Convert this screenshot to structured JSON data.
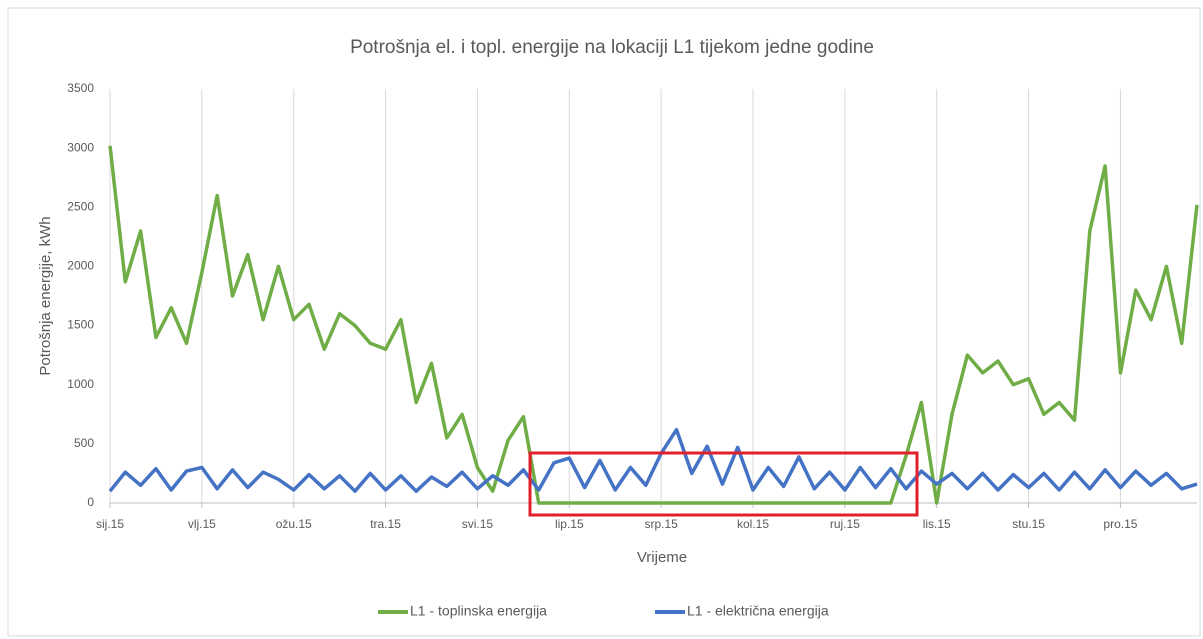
{
  "chart_data": {
    "type": "line",
    "title": "Potrošnja el. i topl. energije na lokaciji L1 tijekom jedne godine",
    "x_label": "Vrijeme",
    "y_label": "Potrošnja energije, kWh",
    "categories": [
      "sij.15",
      null,
      null,
      null,
      null,
      null,
      "vlj.15",
      null,
      null,
      null,
      null,
      null,
      "ožu.15",
      null,
      null,
      null,
      null,
      null,
      "tra.15",
      null,
      null,
      null,
      null,
      null,
      "svi.15",
      null,
      null,
      null,
      null,
      null,
      "lip.15",
      null,
      null,
      null,
      null,
      null,
      "srp.15",
      null,
      null,
      null,
      null,
      null,
      "kol.15",
      null,
      null,
      null,
      null,
      null,
      "ruj.15",
      null,
      null,
      null,
      null,
      null,
      "lis.15",
      null,
      null,
      null,
      null,
      null,
      "stu.15",
      null,
      null,
      null,
      null,
      null,
      "pro.15",
      null,
      null,
      null,
      null,
      null
    ],
    "ylim": [
      0,
      3500
    ],
    "yticks": [
      0,
      500,
      1000,
      1500,
      2000,
      2500,
      3000,
      3500
    ],
    "grid": "vertical",
    "legend": "bottom",
    "series": [
      {
        "name": "L1 - toplinska energija",
        "color": "#70ad47",
        "values": [
          3020,
          1870,
          2300,
          1400,
          1650,
          1350,
          1950,
          2600,
          1750,
          2100,
          1550,
          2000,
          1550,
          1680,
          1300,
          1600,
          1500,
          1350,
          1300,
          1550,
          850,
          1180,
          550,
          750,
          300,
          100,
          530,
          730,
          0,
          0,
          0,
          0,
          0,
          0,
          0,
          0,
          0,
          0,
          0,
          0,
          0,
          0,
          0,
          0,
          0,
          0,
          0,
          0,
          0,
          0,
          0,
          0,
          400,
          850,
          0,
          750,
          1250,
          1100,
          1200,
          1000,
          1050,
          750,
          850,
          700,
          2300,
          2850,
          1100,
          1800,
          1550,
          2000,
          1350,
          2520
        ]
      },
      {
        "name": "L1 - električna energija",
        "color": "#4472c4",
        "values": [
          100,
          260,
          150,
          290,
          110,
          270,
          300,
          120,
          280,
          130,
          260,
          200,
          110,
          240,
          120,
          230,
          100,
          250,
          110,
          230,
          100,
          220,
          140,
          260,
          120,
          230,
          150,
          280,
          110,
          340,
          380,
          130,
          360,
          110,
          300,
          150,
          420,
          620,
          250,
          480,
          160,
          470,
          110,
          300,
          140,
          390,
          120,
          260,
          110,
          300,
          130,
          290,
          120,
          270,
          160,
          250,
          120,
          250,
          110,
          240,
          130,
          250,
          110,
          260,
          120,
          280,
          130,
          270,
          150,
          250,
          120,
          160
        ]
      }
    ]
  }
}
